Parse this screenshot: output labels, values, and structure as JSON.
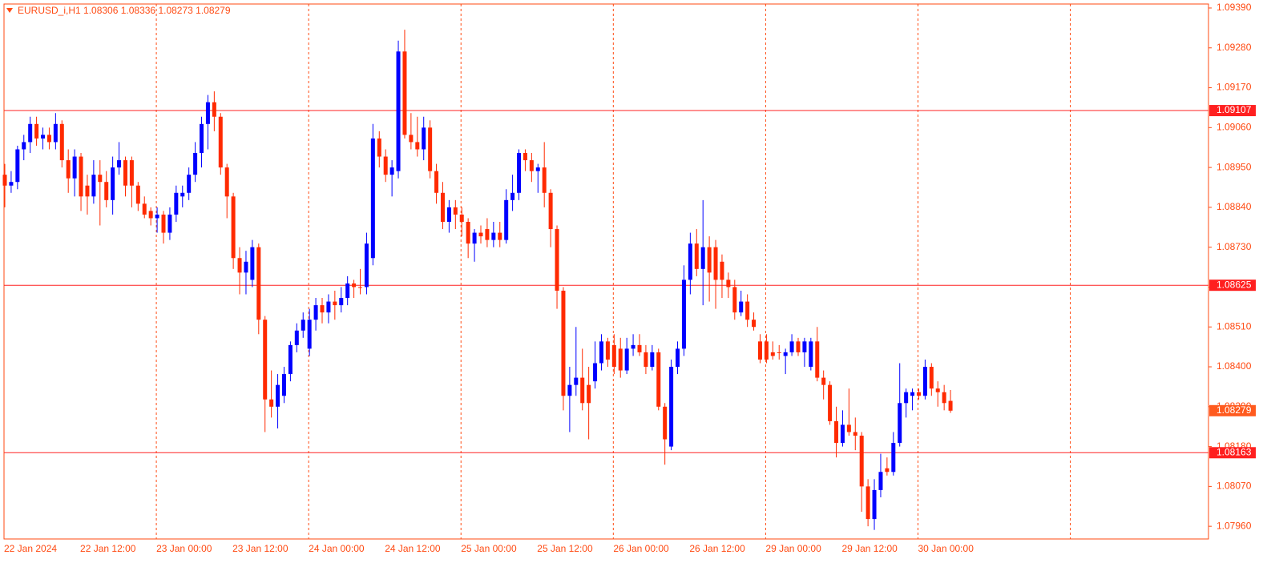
{
  "chart_data": {
    "type": "candlestick",
    "title": "EURUSD_i,H1  1.08306 1.08336 1.08273 1.08279",
    "categories": [
      "22 Jan 2024",
      null,
      null,
      null,
      null,
      null,
      null,
      null,
      null,
      null,
      null,
      null,
      "22 Jan 12:00",
      null,
      null,
      null,
      null,
      null,
      null,
      null,
      null,
      null,
      null,
      null,
      "23 Jan 00:00",
      null,
      null,
      null,
      null,
      null,
      null,
      null,
      null,
      null,
      null,
      null,
      "23 Jan 12:00",
      null,
      null,
      null,
      null,
      null,
      null,
      null,
      null,
      null,
      null,
      null,
      "24 Jan 00:00",
      null,
      null,
      null,
      null,
      null,
      null,
      null,
      null,
      null,
      null,
      null,
      "24 Jan 12:00",
      null,
      null,
      null,
      null,
      null,
      null,
      null,
      null,
      null,
      null,
      null,
      "25 Jan 00:00",
      null,
      null,
      null,
      null,
      null,
      null,
      null,
      null,
      null,
      null,
      null,
      "25 Jan 12:00",
      null,
      null,
      null,
      null,
      null,
      null,
      null,
      null,
      null,
      null,
      null,
      "26 Jan 00:00",
      null,
      null,
      null,
      null,
      null,
      null,
      null,
      null,
      null,
      null,
      null,
      "26 Jan 12:00",
      null,
      null,
      null,
      null,
      null,
      null,
      null,
      null,
      null,
      null,
      null,
      "29 Jan 00:00",
      null,
      null,
      null,
      null,
      null,
      null,
      null,
      null,
      null,
      null,
      null,
      "29 Jan 12:00",
      null,
      null,
      null,
      null,
      null,
      null,
      null,
      null,
      null,
      null,
      null,
      "30 Jan 00:00",
      null,
      null,
      null,
      null,
      null
    ],
    "open": [
      1.0893,
      1.089,
      1.0891,
      1.09,
      1.0902,
      1.0907,
      1.0903,
      1.0904,
      1.0902,
      1.0907,
      1.0897,
      1.0892,
      1.0898,
      1.089,
      1.0887,
      1.0893,
      1.0891,
      1.0886,
      1.0895,
      1.0897,
      1.0897,
      1.089,
      1.0885,
      1.0883,
      1.0881,
      1.0882,
      1.0877,
      1.0882,
      1.0887,
      1.0888,
      1.0893,
      1.0899,
      1.0907,
      1.0913,
      1.0909,
      1.0895,
      1.0887,
      1.087,
      1.0866,
      1.0864,
      1.0873,
      1.0853,
      1.0831,
      1.0829,
      1.0832,
      1.0838,
      1.0846,
      1.085,
      1.0845,
      1.0853,
      1.0857,
      1.0855,
      1.0858,
      1.0857,
      1.0859,
      1.0863,
      1.0862,
      1.0862,
      1.087,
      1.0903,
      1.0898,
      1.0893,
      1.0894,
      1.0927,
      1.0904,
      1.0902,
      1.09,
      1.0906,
      1.0894,
      1.0888,
      1.088,
      1.0884,
      1.0882,
      1.088,
      1.0874,
      1.0877,
      1.0878,
      1.0875,
      1.0877,
      1.0875,
      1.0886,
      1.0888,
      1.0899,
      1.0897,
      1.0894,
      1.0895,
      1.0888,
      1.0878,
      1.0861,
      1.0832,
      1.0835,
      1.0837,
      1.0835,
      1.0836,
      1.0841,
      1.0847,
      1.0846,
      1.0845,
      1.0839,
      1.0845,
      1.0846,
      1.0844,
      1.084,
      1.0844,
      1.0829,
      1.0818,
      1.084,
      1.0845,
      1.0864,
      1.0874,
      1.0867,
      1.0873,
      1.0873,
      1.0869,
      1.0864,
      1.0862,
      1.0855,
      1.0858,
      1.0853,
      1.0847,
      1.0847,
      1.0844,
      1.0844,
      1.0843,
      1.0844,
      1.0847,
      1.0844,
      1.084,
      1.0847,
      1.0837,
      1.0835,
      1.0825,
      1.0819,
      1.0824,
      1.0822,
      1.0821,
      1.0807,
      1.0798,
      1.0806,
      1.0812,
      1.0811,
      1.0819,
      1.083,
      1.0832,
      1.0833,
      1.0832,
      1.084,
      1.0834,
      1.0833,
      1.08306
    ],
    "high": [
      1.0896,
      1.0894,
      1.0901,
      1.0904,
      1.0909,
      1.0909,
      1.0906,
      1.0906,
      1.091,
      1.0908,
      1.09,
      1.09,
      1.0899,
      1.0893,
      1.0897,
      1.0897,
      1.0894,
      1.0898,
      1.0902,
      1.0898,
      1.0898,
      1.0891,
      1.0887,
      1.0884,
      1.0884,
      1.0883,
      1.0884,
      1.089,
      1.089,
      1.0895,
      1.0902,
      1.0909,
      1.0915,
      1.0916,
      1.091,
      1.0896,
      1.0888,
      1.0873,
      1.0872,
      1.0875,
      1.0874,
      1.0854,
      1.0839,
      1.0838,
      1.084,
      1.0847,
      1.0852,
      1.0855,
      1.0856,
      1.0859,
      1.0859,
      1.086,
      1.0861,
      1.0862,
      1.0865,
      1.0864,
      1.0867,
      1.0877,
      1.0907,
      1.0905,
      1.09,
      1.0897,
      1.093,
      1.0933,
      1.091,
      1.0909,
      1.0909,
      1.0908,
      1.0896,
      1.0891,
      1.0886,
      1.0886,
      1.0884,
      1.0881,
      1.0878,
      1.0879,
      1.0881,
      1.088,
      1.088,
      1.0889,
      1.0893,
      1.09,
      1.09,
      1.0899,
      1.0896,
      1.0902,
      1.0889,
      1.0879,
      1.0862,
      1.084,
      1.0851,
      1.0845,
      1.084,
      1.0847,
      1.0849,
      1.0848,
      1.0849,
      1.0848,
      1.0848,
      1.0849,
      1.0849,
      1.0846,
      1.0846,
      1.0845,
      1.083,
      1.0842,
      1.0847,
      1.0868,
      1.0877,
      1.0878,
      1.0886,
      1.0876,
      1.0875,
      1.0871,
      1.0866,
      1.0864,
      1.0861,
      1.086,
      1.0855,
      1.0849,
      1.0849,
      1.0847,
      1.0846,
      1.0845,
      1.0849,
      1.0848,
      1.0848,
      1.0848,
      1.0851,
      1.0839,
      1.0836,
      1.0829,
      1.0828,
      1.0834,
      1.0826,
      1.0822,
      1.0809,
      1.0809,
      1.0816,
      1.0815,
      1.0822,
      1.0841,
      1.0834,
      1.0834,
      1.0834,
      1.0842,
      1.0841,
      1.0836,
      1.0835,
      1.08336
    ],
    "low": [
      1.0884,
      1.0888,
      1.0889,
      1.0897,
      1.0899,
      1.0901,
      1.09,
      1.09,
      1.09,
      1.0895,
      1.0888,
      1.0887,
      1.0883,
      1.0882,
      1.0885,
      1.0879,
      1.0884,
      1.0882,
      1.0893,
      1.0887,
      1.0884,
      1.0883,
      1.0881,
      1.0879,
      1.0877,
      1.0874,
      1.0875,
      1.088,
      1.0884,
      1.0886,
      1.0891,
      1.0895,
      1.09,
      1.0905,
      1.0893,
      1.0881,
      1.0867,
      1.086,
      1.086,
      1.0862,
      1.0849,
      1.0822,
      1.0826,
      1.0823,
      1.083,
      1.0836,
      1.0844,
      1.0848,
      1.0843,
      1.085,
      1.0852,
      1.0852,
      1.0853,
      1.0855,
      1.0857,
      1.0859,
      1.086,
      1.086,
      1.0868,
      1.0895,
      1.0891,
      1.0887,
      1.0892,
      1.0903,
      1.09,
      1.0898,
      1.0897,
      1.0892,
      1.0885,
      1.0878,
      1.0877,
      1.0878,
      1.0876,
      1.087,
      1.0869,
      1.0874,
      1.0873,
      1.0873,
      1.0873,
      1.0874,
      1.0883,
      1.0886,
      1.0894,
      1.0891,
      1.0888,
      1.0884,
      1.0873,
      1.0856,
      1.0828,
      1.0822,
      1.0832,
      1.0828,
      1.082,
      1.0834,
      1.0839,
      1.084,
      1.0838,
      1.0837,
      1.0838,
      1.0843,
      1.0843,
      1.0838,
      1.0839,
      1.0828,
      1.0813,
      1.0817,
      1.0838,
      1.0843,
      1.086,
      1.0865,
      1.0857,
      1.0858,
      1.0856,
      1.0859,
      1.0859,
      1.0853,
      1.0854,
      1.0851,
      1.085,
      1.0841,
      1.0841,
      1.0842,
      1.0842,
      1.0838,
      1.0843,
      1.0843,
      1.084,
      1.0839,
      1.0836,
      1.0831,
      1.0824,
      1.0815,
      1.0818,
      1.0821,
      1.0817,
      1.08,
      1.0796,
      1.0795,
      1.0804,
      1.081,
      1.081,
      1.0818,
      1.0826,
      1.0828,
      1.0831,
      1.0831,
      1.0832,
      1.0829,
      1.0828,
      1.08273
    ],
    "close": [
      1.089,
      1.0891,
      1.09,
      1.0902,
      1.0907,
      1.0903,
      1.0904,
      1.0902,
      1.0907,
      1.0897,
      1.0892,
      1.0898,
      1.0887,
      1.0887,
      1.0893,
      1.0891,
      1.0886,
      1.0895,
      1.0897,
      1.089,
      1.089,
      1.0885,
      1.0882,
      1.0881,
      1.0882,
      1.0877,
      1.0882,
      1.0888,
      1.0888,
      1.0893,
      1.0899,
      1.0907,
      1.0913,
      1.0909,
      1.0895,
      1.0887,
      1.087,
      1.0866,
      1.0869,
      1.0873,
      1.0853,
      1.0831,
      1.0829,
      1.0835,
      1.0838,
      1.0846,
      1.085,
      1.0853,
      1.0853,
      1.0857,
      1.0855,
      1.0858,
      1.0857,
      1.0859,
      1.0863,
      1.0862,
      1.0862,
      1.0874,
      1.0903,
      1.0898,
      1.0893,
      1.0895,
      1.0927,
      1.0904,
      1.0902,
      1.09,
      1.0906,
      1.0894,
      1.0888,
      1.088,
      1.0884,
      1.0882,
      1.088,
      1.0874,
      1.0877,
      1.0876,
      1.0875,
      1.0877,
      1.0875,
      1.0886,
      1.0888,
      1.0899,
      1.0897,
      1.0894,
      1.0895,
      1.0888,
      1.0878,
      1.0861,
      1.0832,
      1.0835,
      1.0837,
      1.083,
      1.083,
      1.0841,
      1.0847,
      1.0842,
      1.084,
      1.0839,
      1.0845,
      1.0846,
      1.0844,
      1.084,
      1.0844,
      1.0829,
      1.082,
      1.084,
      1.0845,
      1.0864,
      1.0874,
      1.0867,
      1.0873,
      1.0866,
      1.0864,
      1.0864,
      1.0862,
      1.0855,
      1.0858,
      1.0853,
      1.0851,
      1.0842,
      1.0842,
      1.0843,
      1.0844,
      1.0844,
      1.0847,
      1.0844,
      1.0847,
      1.0847,
      1.0837,
      1.0835,
      1.0825,
      1.0819,
      1.0824,
      1.0822,
      1.0821,
      1.0807,
      1.0798,
      1.0806,
      1.0811,
      1.0811,
      1.0819,
      1.083,
      1.0833,
      1.0833,
      1.0832,
      1.084,
      1.0834,
      1.0833,
      1.083,
      1.08279
    ],
    "up_color": "#0000ff",
    "down_color": "#ff2a00",
    "ylim": [
      1.07925,
      1.09401
    ],
    "yticks": [
      {
        "value": 1.0939,
        "label": "1.09390"
      },
      {
        "value": 1.0928,
        "label": "1.09280"
      },
      {
        "value": 1.0917,
        "label": "1.09170"
      },
      {
        "value": 1.0906,
        "label": "1.09060"
      },
      {
        "value": 1.0895,
        "label": "1.08950"
      },
      {
        "value": 1.0884,
        "label": "1.08840"
      },
      {
        "value": 1.0873,
        "label": "1.08730"
      },
      {
        "value": 1.0862,
        "label": "1.08620"
      },
      {
        "value": 1.0851,
        "label": "1.08510"
      },
      {
        "value": 1.084,
        "label": "1.08400"
      },
      {
        "value": 1.0829,
        "label": "1.08290"
      },
      {
        "value": 1.0818,
        "label": "1.08180"
      },
      {
        "value": 1.0807,
        "label": "1.08070"
      },
      {
        "value": 1.0796,
        "label": "1.07960"
      }
    ],
    "levels": [
      1.09107,
      1.08625,
      1.08163
    ],
    "level_color": "#ff2020",
    "current_price": 1.08279,
    "current_price_color": "#ff5a1e",
    "grid": true
  }
}
